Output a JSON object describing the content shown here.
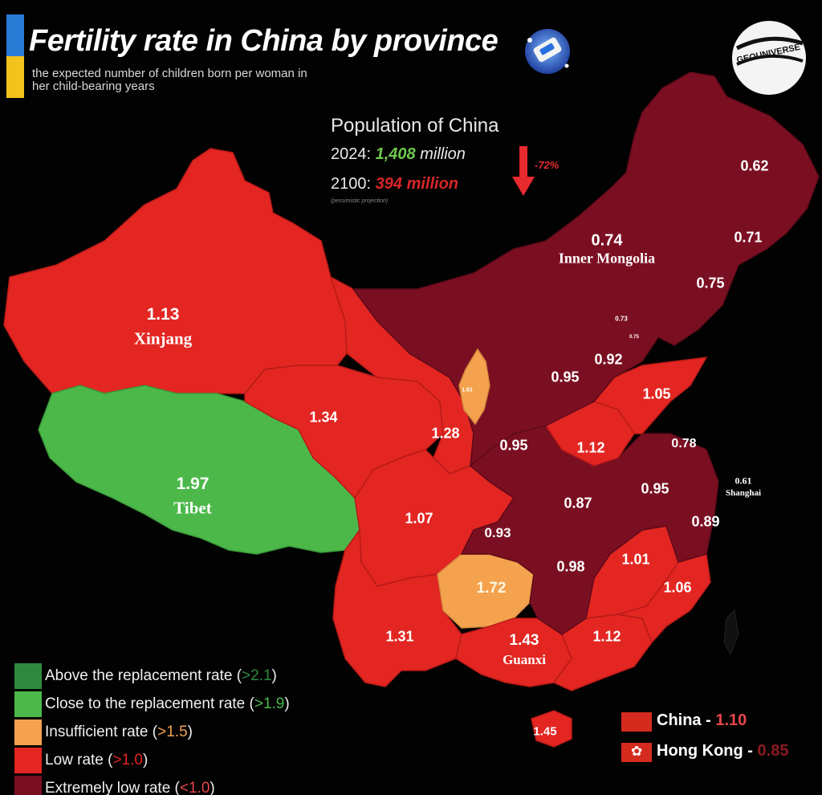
{
  "header": {
    "title": "Fertility rate in China by province",
    "subtitle": "the expected number of children born per woman in her child-bearing years",
    "logo_text": "GEOUNIVERSE"
  },
  "population": {
    "title": "Population of China",
    "row_2024_year": "2024:",
    "row_2024_value": "1,408",
    "row_2024_unit": "million",
    "row_2100_year": "2100:",
    "row_2100_value": "394",
    "row_2100_unit": "million",
    "note": "(pessimistic projection)",
    "change": "-72%"
  },
  "colors": {
    "above": "#2e8b3e",
    "close": "#4cb84a",
    "insufficient": "#f4a24e",
    "low": "#e32622",
    "extremely_low": "#7b0f22",
    "population_2024": "#6ec94e",
    "population_2100": "#d8262a"
  },
  "map_labels": [
    {
      "id": "xinjiang",
      "value": "1.13",
      "name": "Xinjang"
    },
    {
      "id": "tibet",
      "value": "1.97",
      "name": "Tibet"
    },
    {
      "id": "inner-mongolia",
      "value": "0.74",
      "name": "Inner Mongolia"
    },
    {
      "id": "guangxi",
      "value": "1.43",
      "name": "Guanxi"
    },
    {
      "id": "shanghai",
      "value": "0.61",
      "name": "Shanghai"
    },
    {
      "id": "heilongjiang",
      "value": "0.62"
    },
    {
      "id": "jilin",
      "value": "0.71"
    },
    {
      "id": "liaoning",
      "value": "0.75"
    },
    {
      "id": "beijing",
      "value": "0.73"
    },
    {
      "id": "tianjin",
      "value": "0.75"
    },
    {
      "id": "hebei",
      "value": "0.92"
    },
    {
      "id": "shanxi",
      "value": "0.95"
    },
    {
      "id": "shandong",
      "value": "1.05"
    },
    {
      "id": "qinghai",
      "value": "1.34"
    },
    {
      "id": "gansu",
      "value": "1.28"
    },
    {
      "id": "shaanxi",
      "value": "0.95"
    },
    {
      "id": "henan",
      "value": "1.12"
    },
    {
      "id": "jiangsu",
      "value": "0.78"
    },
    {
      "id": "anhui",
      "value": "0.95"
    },
    {
      "id": "hubei",
      "value": "0.87"
    },
    {
      "id": "zhejiang",
      "value": "0.89"
    },
    {
      "id": "sichuan",
      "value": "1.07"
    },
    {
      "id": "chongqing",
      "value": "0.93"
    },
    {
      "id": "guizhou",
      "value": "1.72"
    },
    {
      "id": "hunan",
      "value": "0.98"
    },
    {
      "id": "jiangxi",
      "value": "1.01"
    },
    {
      "id": "fujian",
      "value": "1.06"
    },
    {
      "id": "yunnan",
      "value": "1.31"
    },
    {
      "id": "guangdong",
      "value": "1.12"
    },
    {
      "id": "hainan",
      "value": "1.45"
    },
    {
      "id": "ningxia",
      "value": "1.61"
    }
  ],
  "legend": [
    {
      "label": "Above the replacement rate",
      "threshold": ">2.1",
      "key": "above"
    },
    {
      "label": "Close to the replacement rate",
      "threshold": ">1.9",
      "key": "close"
    },
    {
      "label": "Insufficient rate",
      "threshold": ">1.5",
      "key": "insufficient"
    },
    {
      "label": "Low rate",
      "threshold": ">1.0",
      "key": "low"
    },
    {
      "label": "Extremely low rate",
      "threshold": "<1.0",
      "key": "extremely_low"
    }
  ],
  "summary": {
    "china_label": "China -",
    "china_value": "1.10",
    "hongkong_label": "Hong Kong -",
    "hongkong_value": "0.85"
  }
}
